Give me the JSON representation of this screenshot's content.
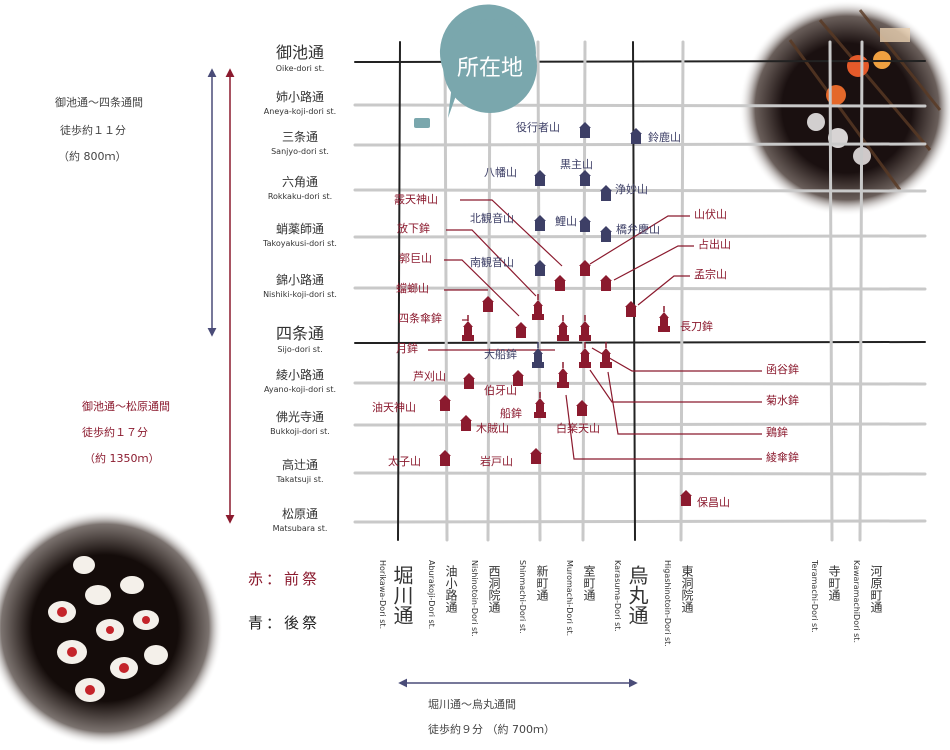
{
  "colors": {
    "zen_matsuri": "#8b1a2e",
    "ato_matsuri": "#3d3f66",
    "grid_line": "#c9c9c9",
    "major_line": "#222222",
    "bubble": "#7aa7ad",
    "arrow_blue": "#4a4c78",
    "arrow_red": "#8b1a2e"
  },
  "here_marker": {
    "label": "所在地",
    "icon": "location-marker-icon"
  },
  "legend": {
    "zen_label": "赤：前祭",
    "ato_label": "青：後祭"
  },
  "notes": {
    "oike_shijo": {
      "line1": "御池通～四条通間",
      "line2": "徒歩約１１分",
      "line3": "（約 800ｍ）"
    },
    "oike_matsubara": {
      "line1": "御池通～松原通間",
      "line2": "徒歩約１７分",
      "line3": "（約 1350ｍ）"
    },
    "horikawa_karasuma": {
      "line1": "堀川通～烏丸通間",
      "line2": "徒歩約９分 （約 700ｍ）"
    }
  },
  "east_west_streets": [
    {
      "jp": "御池通",
      "en": "Oike-dori st."
    },
    {
      "jp": "姉小路通",
      "en": "Aneya-koji-dori st."
    },
    {
      "jp": "三条通",
      "en": "Sanjyo-dori st."
    },
    {
      "jp": "六角通",
      "en": "Rokkaku-dori st."
    },
    {
      "jp": "蛸薬師通",
      "en": "Takoyakusi-dori st."
    },
    {
      "jp": "錦小路通",
      "en": "Nishiki-koji-dori st."
    },
    {
      "jp": "四条通",
      "en": "Sijo-dori st."
    },
    {
      "jp": "綾小路通",
      "en": "Ayano-koji-dori st."
    },
    {
      "jp": "佛光寺通",
      "en": "Bukkoji-dori st."
    },
    {
      "jp": "高辻通",
      "en": "Takatsuji st."
    },
    {
      "jp": "松原通",
      "en": "Matsubara st."
    }
  ],
  "north_south_streets": [
    {
      "jp": "堀川通",
      "en": "Horikawa-Dori st."
    },
    {
      "jp": "油小路通",
      "en": "Aburakoji-Dori st."
    },
    {
      "jp": "西洞院通",
      "en": "Nishinotoin-Dori st."
    },
    {
      "jp": "新町通",
      "en": "Shinmachi-Dori st."
    },
    {
      "jp": "室町通",
      "en": "Muromachi-Dori st."
    },
    {
      "jp": "烏丸通",
      "en": "Karasuma-Dori st."
    },
    {
      "jp": "東洞院通",
      "en": "Higashinotoin-Dori st."
    },
    {
      "jp": "寺町通",
      "en": "Teramachi-Dori st."
    },
    {
      "jp": "河原町通",
      "en": "KawaramachiDori st."
    }
  ],
  "floats": [
    {
      "name": "役行者山",
      "group": "ato"
    },
    {
      "name": "鈴鹿山",
      "group": "ato"
    },
    {
      "name": "八幡山",
      "group": "ato"
    },
    {
      "name": "黒主山",
      "group": "ato"
    },
    {
      "name": "浄妙山",
      "group": "ato"
    },
    {
      "name": "北観音山",
      "group": "ato"
    },
    {
      "name": "鯉山",
      "group": "ato"
    },
    {
      "name": "橋弁慶山",
      "group": "ato"
    },
    {
      "name": "南観音山",
      "group": "ato"
    },
    {
      "name": "大船鉾",
      "group": "ato"
    },
    {
      "name": "霰天神山",
      "group": "zen"
    },
    {
      "name": "放下鉾",
      "group": "zen"
    },
    {
      "name": "郭巨山",
      "group": "zen"
    },
    {
      "name": "蟷螂山",
      "group": "zen"
    },
    {
      "name": "四条傘鉾",
      "group": "zen"
    },
    {
      "name": "月鉾",
      "group": "zen"
    },
    {
      "name": "山伏山",
      "group": "zen"
    },
    {
      "name": "占出山",
      "group": "zen"
    },
    {
      "name": "孟宗山",
      "group": "zen"
    },
    {
      "name": "長刀鉾",
      "group": "zen"
    },
    {
      "name": "函谷鉾",
      "group": "zen"
    },
    {
      "name": "菊水鉾",
      "group": "zen"
    },
    {
      "name": "鶏鉾",
      "group": "zen"
    },
    {
      "name": "綾傘鉾",
      "group": "zen"
    },
    {
      "name": "芦刈山",
      "group": "zen"
    },
    {
      "name": "伯牙山",
      "group": "zen"
    },
    {
      "name": "油天神山",
      "group": "zen"
    },
    {
      "name": "船鉾",
      "group": "zen"
    },
    {
      "name": "木賊山",
      "group": "zen"
    },
    {
      "name": "白楽天山",
      "group": "zen"
    },
    {
      "name": "太子山",
      "group": "zen"
    },
    {
      "name": "岩戸山",
      "group": "zen"
    },
    {
      "name": "保昌山",
      "group": "zen"
    }
  ]
}
